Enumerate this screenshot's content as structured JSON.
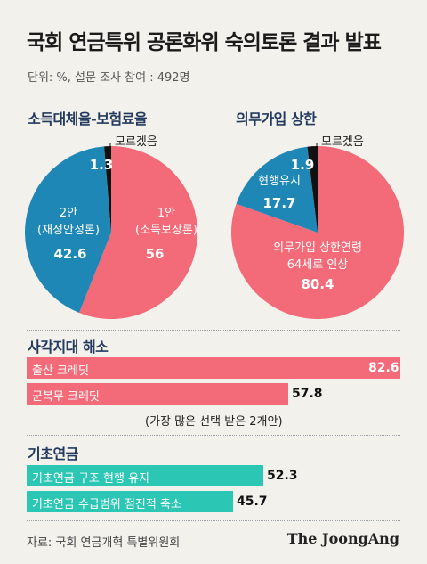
{
  "title": "국회 연금특위 공론화위 숙의토론 결과 발표",
  "unit_note": "단위: %, 설문 조사 참여 : 492명",
  "source": "자료: 국회 연금개혁 특별위원회",
  "brand": "The JoongAng",
  "colors": {
    "red": "#f36a78",
    "blue": "#1f87b5",
    "black": "#111111",
    "teal": "#2cc6b5"
  },
  "chart_data": [
    {
      "type": "pie",
      "title": "소득대체율-보험료율",
      "slices": [
        {
          "label": "1안",
          "sub": "(소득보장론)",
          "value": 56,
          "value_text": "56",
          "color": "#f36a78"
        },
        {
          "label": "2안",
          "sub": "(재정안정론)",
          "value": 42.6,
          "value_text": "42.6",
          "color": "#1f87b5"
        },
        {
          "label": "모르겠음",
          "sub": "",
          "value": 1.3,
          "value_text": "1.3",
          "color": "#111111"
        }
      ]
    },
    {
      "type": "pie",
      "title": "의무가입 상한",
      "slices": [
        {
          "label": "의무가입 상한연령",
          "sub": "64세로 인상",
          "value": 80.4,
          "value_text": "80.4",
          "color": "#f36a78"
        },
        {
          "label": "현행유지",
          "sub": "",
          "value": 17.7,
          "value_text": "17.7",
          "color": "#1f87b5"
        },
        {
          "label": "모르겠음",
          "sub": "",
          "value": 1.9,
          "value_text": "1.9",
          "color": "#111111"
        }
      ]
    },
    {
      "type": "bar",
      "title": "사각지대 해소",
      "categories": [
        "출산 크레딧",
        "군복무 크레딧"
      ],
      "values": [
        82.6,
        57.8
      ],
      "value_texts": [
        "82.6",
        "57.8"
      ],
      "note": "(가장 많은 선택 받은 2개안)",
      "color": "#f36a78"
    },
    {
      "type": "bar",
      "title": "기초연금",
      "categories": [
        "기초연금 구조 현행 유지",
        "기초연금 수급범위 점진적 축소"
      ],
      "values": [
        52.3,
        45.7
      ],
      "value_texts": [
        "52.3",
        "45.7"
      ],
      "color": "#2cc6b5"
    }
  ]
}
